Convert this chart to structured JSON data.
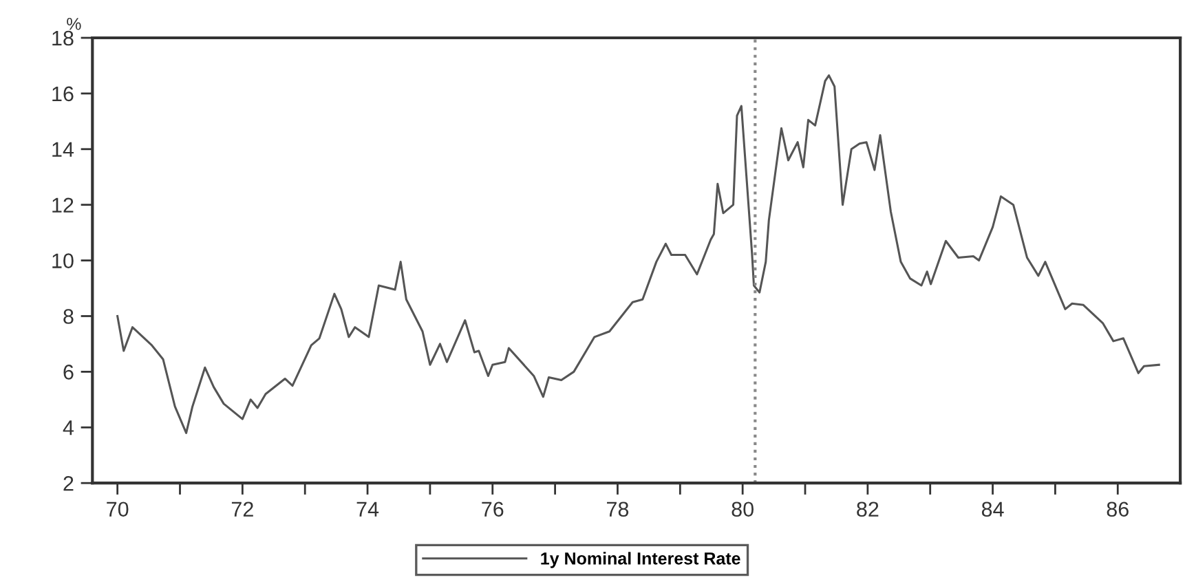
{
  "chart_data": {
    "type": "line",
    "ylabel": "%",
    "x": [
      70.0,
      70.1,
      70.24,
      70.55,
      70.73,
      70.92,
      71.1,
      71.2,
      71.4,
      71.54,
      71.7,
      72.0,
      72.13,
      72.24,
      72.37,
      72.68,
      72.8,
      73.1,
      73.23,
      73.47,
      73.58,
      73.7,
      73.8,
      74.02,
      74.18,
      74.44,
      74.53,
      74.62,
      74.88,
      75.0,
      75.16,
      75.27,
      75.56,
      75.71,
      75.78,
      75.93,
      76.0,
      76.2,
      76.26,
      76.66,
      76.81,
      76.9,
      77.1,
      77.3,
      77.63,
      77.87,
      78.24,
      78.4,
      78.62,
      78.77,
      78.86,
      79.08,
      79.27,
      79.49,
      79.54,
      79.6,
      79.69,
      79.85,
      79.91,
      79.98,
      80.15,
      80.18,
      80.27,
      80.37,
      80.42,
      80.62,
      80.73,
      80.88,
      80.97,
      81.05,
      81.16,
      81.32,
      81.38,
      81.47,
      81.6,
      81.74,
      81.87,
      81.98,
      82.11,
      82.2,
      82.37,
      82.53,
      82.68,
      82.86,
      82.95,
      83.01,
      83.25,
      83.45,
      83.69,
      83.78,
      84.0,
      84.13,
      84.33,
      84.55,
      84.73,
      84.84,
      85.16,
      85.27,
      85.45,
      85.76,
      85.93,
      86.09,
      86.33,
      86.42,
      86.66
    ],
    "series": [
      {
        "name": "1y Nominal Interest Rate",
        "color": "#555555",
        "values": [
          8.0,
          6.75,
          7.6,
          6.95,
          6.45,
          4.75,
          3.8,
          4.75,
          6.15,
          5.45,
          4.85,
          4.3,
          5.0,
          4.7,
          5.2,
          5.75,
          5.5,
          6.95,
          7.2,
          8.8,
          8.25,
          7.25,
          7.6,
          7.25,
          9.1,
          8.95,
          9.95,
          8.6,
          7.45,
          6.25,
          7.0,
          6.35,
          7.85,
          6.7,
          6.75,
          5.85,
          6.25,
          6.35,
          6.85,
          5.85,
          5.1,
          5.8,
          5.7,
          6.0,
          7.25,
          7.45,
          8.5,
          8.6,
          9.95,
          10.6,
          10.2,
          10.2,
          9.5,
          10.75,
          10.95,
          12.75,
          11.7,
          12.0,
          15.2,
          15.55,
          10.25,
          9.1,
          8.85,
          9.95,
          11.45,
          14.75,
          13.6,
          14.25,
          13.35,
          15.05,
          14.85,
          16.45,
          16.65,
          16.25,
          12.0,
          14.0,
          14.2,
          14.25,
          13.25,
          14.5,
          11.75,
          9.95,
          9.35,
          9.1,
          9.6,
          9.15,
          10.7,
          10.1,
          10.15,
          10.0,
          11.2,
          12.3,
          12.0,
          10.1,
          9.45,
          9.95,
          8.25,
          8.45,
          8.4,
          7.75,
          7.1,
          7.2,
          5.95,
          6.2,
          6.25
        ]
      }
    ],
    "xlim": [
      69.6,
      87.0
    ],
    "ylim": [
      2,
      18
    ],
    "xticks": [
      70,
      {
        "value": 71,
        "label": null
      },
      72,
      {
        "value": 73,
        "label": null
      },
      74,
      {
        "value": 75,
        "label": null
      },
      76,
      {
        "value": 77,
        "label": null
      },
      78,
      {
        "value": 79,
        "label": null
      },
      80,
      {
        "value": 81,
        "label": null
      },
      82,
      {
        "value": 83,
        "label": null
      },
      84,
      {
        "value": 85,
        "label": null
      },
      86
    ],
    "yticks": [
      2,
      4,
      6,
      8,
      10,
      12,
      14,
      16,
      18
    ],
    "ref_lines": [
      {
        "axis": "x",
        "value": 80.2,
        "color": "#888888",
        "line_style": "dotted"
      }
    ],
    "grid": false,
    "legend": "bottom",
    "marker": "none",
    "line_style": "solid"
  }
}
